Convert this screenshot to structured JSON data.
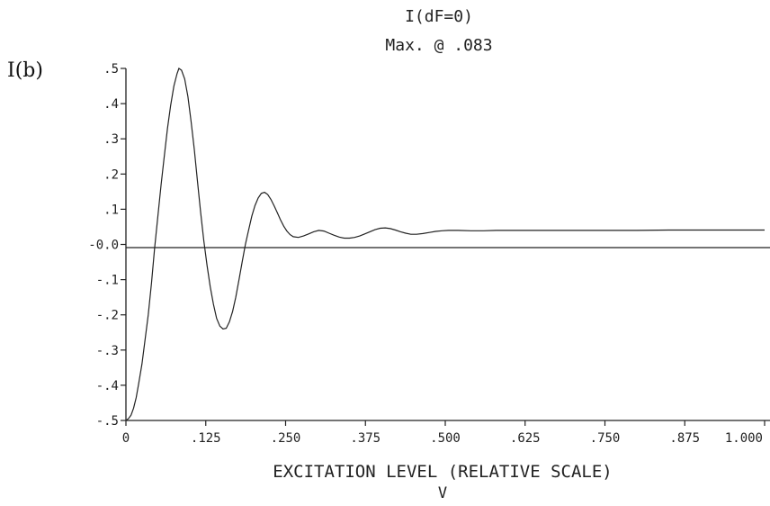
{
  "chart_data": {
    "type": "line",
    "title": "I(dF=0)",
    "subtitle": "Max. @ .083",
    "ylabel": "I(b)",
    "xlabel": "EXCITATION LEVEL (RELATIVE SCALE)",
    "xlabel_symbol": "V",
    "xlim": [
      0,
      1.0
    ],
    "ylim": [
      -0.5,
      0.5
    ],
    "x_ticks": [
      0,
      0.125,
      0.25,
      0.375,
      0.5,
      0.625,
      0.75,
      0.875,
      1.0
    ],
    "x_tick_labels": [
      "0",
      ".125",
      ".250",
      ".375",
      ".500",
      ".625",
      ".750",
      ".875",
      "1.000"
    ],
    "y_ticks": [
      0.5,
      0.4,
      0.3,
      0.2,
      0.1,
      0.0,
      -0.1,
      -0.2,
      -0.3,
      -0.4,
      -0.5
    ],
    "y_tick_labels": [
      ".5",
      ".4",
      ".3",
      ".2",
      ".1",
      "-0.0",
      "-.1",
      "-.2",
      "-.3",
      "-.4",
      "-.5"
    ],
    "zero_line": true,
    "grid": false,
    "series": [
      {
        "color": "#222222",
        "points": [
          [
            0.0,
            -0.5
          ],
          [
            0.004,
            -0.495
          ],
          [
            0.008,
            -0.485
          ],
          [
            0.012,
            -0.465
          ],
          [
            0.016,
            -0.435
          ],
          [
            0.02,
            -0.395
          ],
          [
            0.025,
            -0.34
          ],
          [
            0.03,
            -0.27
          ],
          [
            0.035,
            -0.2
          ],
          [
            0.04,
            -0.11
          ],
          [
            0.045,
            -0.01
          ],
          [
            0.05,
            0.08
          ],
          [
            0.055,
            0.17
          ],
          [
            0.06,
            0.25
          ],
          [
            0.065,
            0.33
          ],
          [
            0.07,
            0.395
          ],
          [
            0.075,
            0.45
          ],
          [
            0.08,
            0.485
          ],
          [
            0.083,
            0.5
          ],
          [
            0.087,
            0.495
          ],
          [
            0.092,
            0.47
          ],
          [
            0.097,
            0.42
          ],
          [
            0.102,
            0.35
          ],
          [
            0.107,
            0.27
          ],
          [
            0.112,
            0.18
          ],
          [
            0.117,
            0.09
          ],
          [
            0.122,
            0.01
          ],
          [
            0.127,
            -0.06
          ],
          [
            0.132,
            -0.12
          ],
          [
            0.137,
            -0.17
          ],
          [
            0.142,
            -0.21
          ],
          [
            0.147,
            -0.232
          ],
          [
            0.152,
            -0.24
          ],
          [
            0.157,
            -0.238
          ],
          [
            0.162,
            -0.22
          ],
          [
            0.167,
            -0.19
          ],
          [
            0.172,
            -0.15
          ],
          [
            0.177,
            -0.1
          ],
          [
            0.182,
            -0.05
          ],
          [
            0.187,
            0.0
          ],
          [
            0.192,
            0.04
          ],
          [
            0.197,
            0.08
          ],
          [
            0.202,
            0.11
          ],
          [
            0.207,
            0.132
          ],
          [
            0.212,
            0.145
          ],
          [
            0.217,
            0.148
          ],
          [
            0.222,
            0.142
          ],
          [
            0.227,
            0.128
          ],
          [
            0.232,
            0.11
          ],
          [
            0.237,
            0.09
          ],
          [
            0.242,
            0.07
          ],
          [
            0.247,
            0.052
          ],
          [
            0.252,
            0.038
          ],
          [
            0.257,
            0.028
          ],
          [
            0.262,
            0.022
          ],
          [
            0.27,
            0.02
          ],
          [
            0.278,
            0.024
          ],
          [
            0.286,
            0.03
          ],
          [
            0.294,
            0.036
          ],
          [
            0.302,
            0.04
          ],
          [
            0.31,
            0.038
          ],
          [
            0.318,
            0.032
          ],
          [
            0.326,
            0.026
          ],
          [
            0.334,
            0.021
          ],
          [
            0.342,
            0.018
          ],
          [
            0.35,
            0.018
          ],
          [
            0.358,
            0.02
          ],
          [
            0.366,
            0.024
          ],
          [
            0.374,
            0.03
          ],
          [
            0.382,
            0.036
          ],
          [
            0.39,
            0.042
          ],
          [
            0.398,
            0.046
          ],
          [
            0.406,
            0.047
          ],
          [
            0.414,
            0.045
          ],
          [
            0.422,
            0.041
          ],
          [
            0.43,
            0.036
          ],
          [
            0.438,
            0.032
          ],
          [
            0.446,
            0.029
          ],
          [
            0.455,
            0.029
          ],
          [
            0.465,
            0.031
          ],
          [
            0.475,
            0.034
          ],
          [
            0.485,
            0.037
          ],
          [
            0.495,
            0.039
          ],
          [
            0.505,
            0.04
          ],
          [
            0.52,
            0.04
          ],
          [
            0.54,
            0.039
          ],
          [
            0.56,
            0.039
          ],
          [
            0.58,
            0.04
          ],
          [
            0.6,
            0.04
          ],
          [
            0.64,
            0.04
          ],
          [
            0.68,
            0.04
          ],
          [
            0.72,
            0.04
          ],
          [
            0.76,
            0.04
          ],
          [
            0.8,
            0.04
          ],
          [
            0.85,
            0.041
          ],
          [
            0.9,
            0.041
          ],
          [
            0.95,
            0.041
          ],
          [
            1.0,
            0.041
          ]
        ]
      }
    ]
  }
}
